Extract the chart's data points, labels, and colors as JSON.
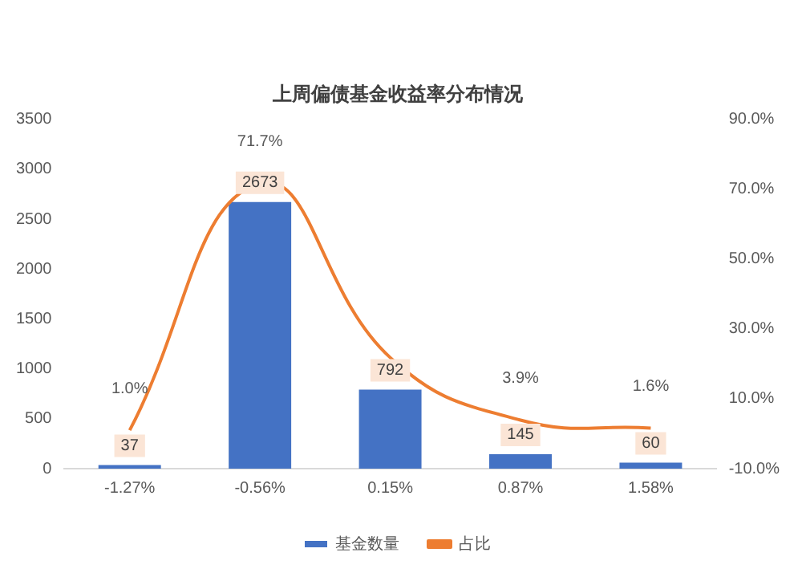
{
  "chart_data": {
    "type": "bar",
    "title": "上周偏债基金收益率分布情况",
    "categories": [
      "-1.27%",
      "-0.56%",
      "0.15%",
      "0.87%",
      "1.58%"
    ],
    "series": [
      {
        "name": "基金数量",
        "color": "#4472c4",
        "values": [
          37,
          2673,
          792,
          145,
          60
        ],
        "value_labels": [
          "37",
          "2673",
          "792",
          "145",
          "60"
        ]
      },
      {
        "name": "占比",
        "type": "line",
        "axis": "y2",
        "color": "#ed7d31",
        "values": [
          1.0,
          71.7,
          21.8,
          3.9,
          1.6
        ],
        "value_labels": [
          "1.0%",
          "71.7%",
          null,
          "3.9%",
          "1.6%"
        ]
      }
    ],
    "ylim": [
      0,
      3500
    ],
    "yticks": [
      0,
      500,
      1000,
      1500,
      2000,
      2500,
      3000,
      3500
    ],
    "y2lim": [
      -10,
      90
    ],
    "y2ticks": [
      {
        "value": -10,
        "label": "-10.0%"
      },
      {
        "value": 10,
        "label": "10.0%"
      },
      {
        "value": 30,
        "label": "30.0%"
      },
      {
        "value": 50,
        "label": "50.0%"
      },
      {
        "value": 70,
        "label": "70.0%"
      },
      {
        "value": 90,
        "label": "90.0%"
      }
    ],
    "grid": false,
    "legend": "bottom",
    "marker": "none"
  }
}
